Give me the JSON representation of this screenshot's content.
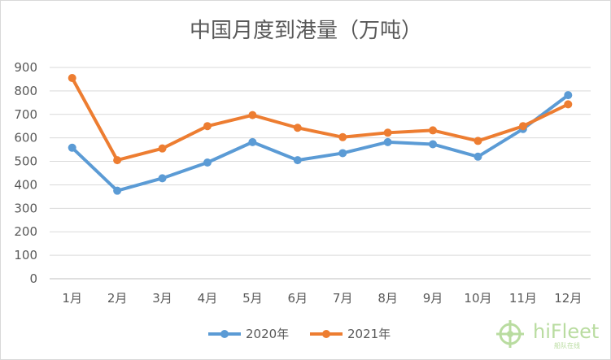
{
  "chart_data": {
    "type": "line",
    "title": "中国月度到港量（万吨）",
    "xlabel": "",
    "ylabel": "",
    "categories": [
      "1月",
      "2月",
      "3月",
      "4月",
      "5月",
      "6月",
      "7月",
      "8月",
      "9月",
      "10月",
      "11月",
      "12月"
    ],
    "ylim": [
      0,
      900
    ],
    "yticks": [
      0,
      100,
      200,
      300,
      400,
      500,
      600,
      700,
      800,
      900
    ],
    "grid": true,
    "legend": "bottom",
    "series": [
      {
        "name": "2020年",
        "color": "#5b9bd5",
        "values": [
          558,
          375,
          428,
          495,
          582,
          505,
          535,
          582,
          573,
          520,
          638,
          782
        ]
      },
      {
        "name": "2021年",
        "color": "#ed7d31",
        "values": [
          855,
          505,
          555,
          650,
          697,
          643,
          603,
          622,
          632,
          587,
          650,
          743
        ]
      }
    ]
  },
  "watermark": {
    "text": "hiFleet",
    "subtext": "船队在线",
    "icon": "ship-wheel-icon",
    "color": "#b9dca0"
  }
}
